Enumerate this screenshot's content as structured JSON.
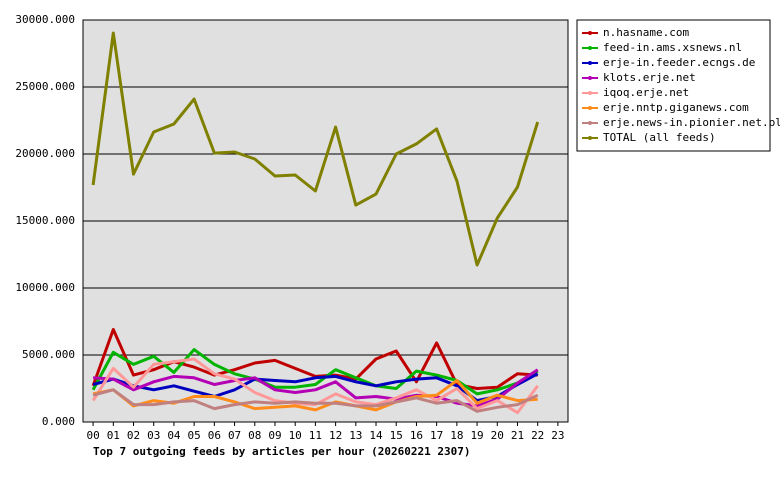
{
  "chart_data": {
    "type": "line",
    "title": "Top 7 outgoing feeds by articles per hour (20260221 2307)",
    "categories": [
      "00",
      "01",
      "02",
      "03",
      "04",
      "05",
      "06",
      "07",
      "08",
      "09",
      "10",
      "11",
      "12",
      "13",
      "14",
      "15",
      "16",
      "17",
      "18",
      "19",
      "20",
      "21",
      "22",
      "23"
    ],
    "ylim": [
      0,
      30000
    ],
    "yticks": [
      {
        "value": 0,
        "label": "0.000"
      },
      {
        "value": 5000,
        "label": "5000.000"
      },
      {
        "value": 10000,
        "label": "10000.000"
      },
      {
        "value": 15000,
        "label": "15000.000"
      },
      {
        "value": 20000,
        "label": "20000.000"
      },
      {
        "value": 25000,
        "label": "25000.000"
      },
      {
        "value": 30000,
        "label": "30000.000"
      }
    ],
    "grid": true,
    "legend": "right",
    "series": [
      {
        "name": "n.hasname.com",
        "color": "#c00000",
        "values": [
          2700,
          6900,
          3500,
          3900,
          4500,
          4100,
          3500,
          3900,
          4400,
          4600,
          4000,
          3400,
          3500,
          3200,
          4700,
          5300,
          3000,
          5900,
          2800,
          2500,
          2600,
          3600,
          3500,
          null
        ]
      },
      {
        "name": "feed-in.ams.xsnews.nl",
        "color": "#00b400",
        "values": [
          2400,
          5200,
          4300,
          4900,
          3700,
          5400,
          4300,
          3600,
          3200,
          2600,
          2600,
          2800,
          3900,
          3300,
          2700,
          2500,
          3800,
          3500,
          3100,
          2100,
          2400,
          2900,
          3800,
          null
        ]
      },
      {
        "name": "erje-in.feeder.ecngs.de",
        "color": "#0000c0",
        "values": [
          2800,
          3200,
          2700,
          2400,
          2700,
          2300,
          1900,
          2400,
          3200,
          3100,
          3000,
          3300,
          3400,
          3000,
          2700,
          3000,
          3200,
          3300,
          2700,
          1600,
          1900,
          2800,
          3600,
          null
        ]
      },
      {
        "name": "klots.erje.net",
        "color": "#b400b4",
        "values": [
          3300,
          3200,
          2400,
          3000,
          3400,
          3300,
          2800,
          3100,
          3300,
          2400,
          2200,
          2400,
          3000,
          1800,
          1900,
          1700,
          2000,
          1900,
          1400,
          1200,
          1700,
          2900,
          3900,
          null
        ]
      },
      {
        "name": "iqoq.erje.net",
        "color": "#ff9999",
        "values": [
          1600,
          4000,
          2600,
          4300,
          4500,
          4700,
          3600,
          3200,
          2200,
          1600,
          1400,
          1300,
          2100,
          1500,
          1300,
          1800,
          2400,
          1600,
          2500,
          1000,
          1600,
          700,
          2700,
          null
        ]
      },
      {
        "name": "erje.nntp.giganews.com",
        "color": "#ff8c1a",
        "values": [
          2100,
          2400,
          1200,
          1600,
          1400,
          1900,
          1900,
          1500,
          1000,
          1100,
          1200,
          900,
          1500,
          1200,
          900,
          1500,
          1900,
          2000,
          3100,
          1400,
          2000,
          1600,
          1700,
          null
        ]
      },
      {
        "name": "erje.news-in.pionier.net.pl",
        "color": "#c08080",
        "values": [
          2000,
          2400,
          1300,
          1300,
          1500,
          1600,
          1000,
          1300,
          1500,
          1400,
          1500,
          1400,
          1400,
          1200,
          1200,
          1500,
          1800,
          1400,
          1600,
          800,
          1100,
          1300,
          2000,
          null
        ]
      },
      {
        "name": "TOTAL (all feeds)",
        "color": "#808000",
        "values": [
          17690,
          29030,
          18500,
          21640,
          22240,
          24100,
          20070,
          20150,
          19630,
          18360,
          18430,
          17240,
          22010,
          16190,
          17010,
          20000,
          20750,
          21870,
          17990,
          11720,
          15220,
          17540,
          22390,
          null
        ]
      }
    ]
  }
}
